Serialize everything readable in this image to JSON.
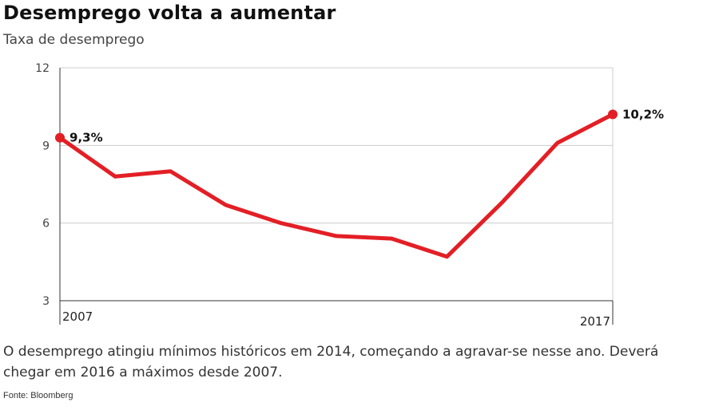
{
  "header": {
    "title": "Desemprego volta a aumentar",
    "subtitle": "Taxa de desemprego"
  },
  "caption": "O desemprego atingiu mínimos históricos em 2014, começando a agravar-se nesse ano. Deverá chegar em 2016 a máximos desde 2007.",
  "source": "Fonte: Bloomberg",
  "colors": {
    "line": "#e31f26",
    "grid": "#cccccc",
    "axis": "#333333"
  },
  "chart_data": {
    "type": "line",
    "title": "Desemprego volta a aumentar",
    "subtitle": "Taxa de desemprego",
    "xlabel": "",
    "ylabel": "",
    "x": [
      2007,
      2008,
      2009,
      2010,
      2011,
      2012,
      2013,
      2014,
      2015,
      2016,
      2017
    ],
    "x_tick_labels": [
      "2007",
      "2017"
    ],
    "yticks": [
      3,
      6,
      9,
      12
    ],
    "ylim": [
      3,
      12
    ],
    "grid": true,
    "series": [
      {
        "values": [
          9.3,
          7.8,
          8.0,
          6.7,
          6.0,
          5.5,
          5.4,
          4.7,
          6.8,
          9.1,
          10.2
        ]
      }
    ],
    "data_labels": [
      {
        "index": 0,
        "text": "9,3%"
      },
      {
        "index": 10,
        "text": "10,2%"
      }
    ]
  }
}
